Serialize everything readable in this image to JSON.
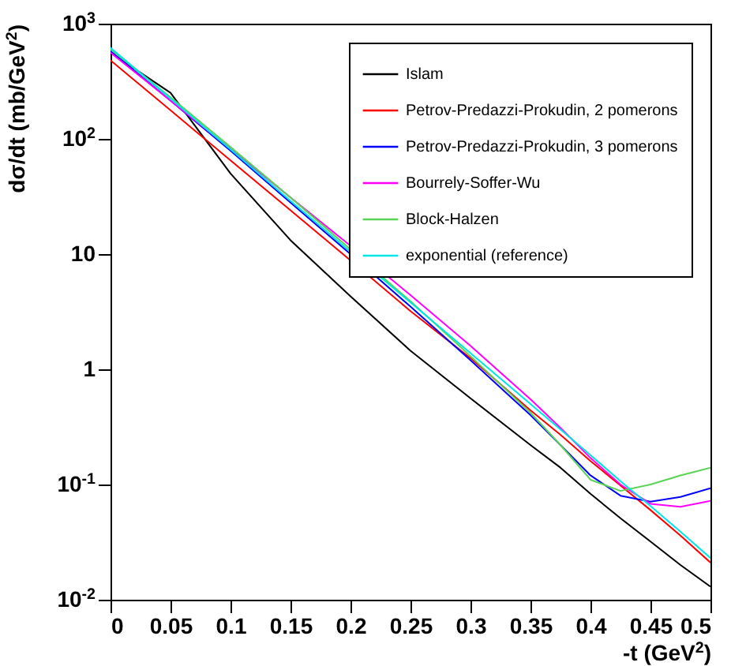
{
  "chart_data": {
    "type": "line",
    "xlabel": "-t   (GeV$^{2}$)",
    "ylabel": "dσ/dt   (mb/GeV$^{2}$)",
    "x": [
      0,
      0.05,
      0.1,
      0.15,
      0.2,
      0.25,
      0.3,
      0.35,
      0.375,
      0.4,
      0.425,
      0.45,
      0.475,
      0.5
    ],
    "series": [
      {
        "name": "Islam",
        "color": "#000000",
        "values": [
          562,
          251,
          50,
          13.2,
          4.3,
          1.45,
          0.56,
          0.22,
          0.14,
          0.083,
          0.051,
          0.032,
          0.02,
          0.013
        ]
      },
      {
        "name": "Petrov-Predazzi-Prokudin, 2 pomerons",
        "color": "#ff0000",
        "values": [
          480,
          177,
          65,
          24,
          8.8,
          3.2,
          1.25,
          0.44,
          0.27,
          0.16,
          0.098,
          0.06,
          0.036,
          0.021
        ]
      },
      {
        "name": "Petrov-Predazzi-Prokudin, 3 pomerons",
        "color": "#0000ff",
        "values": [
          580,
          215,
          79,
          28,
          10,
          3.5,
          1.2,
          0.4,
          0.22,
          0.12,
          0.08,
          0.071,
          0.078,
          0.093
        ]
      },
      {
        "name": "Bourrely-Soffer-Wu",
        "color": "#ff00ff",
        "values": [
          560,
          215,
          82,
          31,
          11.8,
          4.4,
          1.6,
          0.55,
          0.31,
          0.17,
          0.1,
          0.068,
          0.064,
          0.072
        ]
      },
      {
        "name": "Block-Halzen",
        "color": "#59d454",
        "values": [
          600,
          230,
          85,
          31,
          11,
          3.9,
          1.3,
          0.42,
          0.22,
          0.11,
          0.088,
          0.1,
          0.12,
          0.14
        ]
      },
      {
        "name": "exponential (reference)",
        "color": "#00e5e5",
        "values": [
          617,
          224,
          81,
          29,
          10.5,
          3.8,
          1.38,
          0.5,
          0.3,
          0.18,
          0.107,
          0.065,
          0.039,
          0.023
        ]
      }
    ],
    "xlim": [
      0,
      0.5
    ],
    "xticks": [
      0,
      0.05,
      0.1,
      0.15,
      0.2,
      0.25,
      0.3,
      0.35,
      0.4,
      0.45,
      0.5
    ],
    "ylim": [
      0.01,
      1000
    ],
    "log": "y",
    "yticks": [
      {
        "value": 0.01,
        "label": "10$^{-2}$"
      },
      {
        "value": 0.1,
        "label": "10$^{-1}$"
      },
      1,
      10,
      {
        "value": 100,
        "label": "10$^{2}$"
      },
      {
        "value": 1000,
        "label": "10$^{3}$"
      }
    ],
    "grid": false,
    "legend": "top right",
    "marker": "none",
    "line_style": "solid"
  }
}
